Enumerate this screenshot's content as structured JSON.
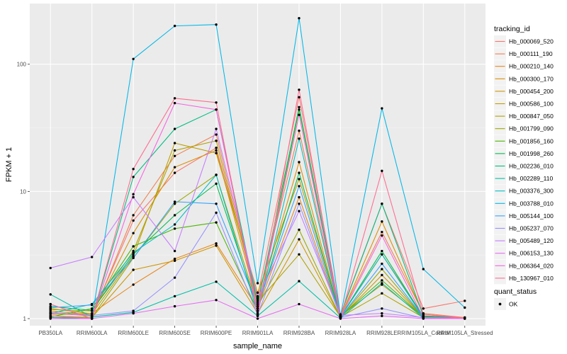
{
  "chart_data": {
    "type": "line",
    "xlabel": "sample_name",
    "ylabel": "FPKM + 1",
    "y_scale": "log10",
    "y_ticks": [
      1,
      10,
      100
    ],
    "ylim": [
      0.88,
      300
    ],
    "grid": true,
    "legend_position": "right",
    "categories": [
      "PB350LA",
      "RRIM600LA",
      "RRIM600LE",
      "RRIM600SE",
      "RRIM600PE",
      "RRIM901LA",
      "RRIM928BA",
      "RRIM928LA",
      "RRIM928LE",
      "RRIM105LA_Control",
      "RRIM105LA_Stressed"
    ],
    "category_labels": [
      "PB350LA",
      "RRIM600LA",
      "RRIM600LE",
      "RRIM600SE",
      "RRIM600PE",
      "RRIM901LA",
      "RRIM928BA",
      "RRIM928LA",
      "RRIM928LE",
      "RRIM105LA_Control",
      "RRIM105LA_Stressed"
    ],
    "legend_title": "tracking_id",
    "series": [
      {
        "name": "Hb_000069_520",
        "color": "#F8766D",
        "values": [
          1.1,
          1.05,
          5.9,
          14.0,
          22.0,
          1.5,
          55.0,
          1.08,
          8.0,
          1.2,
          1.38
        ]
      },
      {
        "name": "Hb_000111_190",
        "color": "#F17E4E",
        "values": [
          1.05,
          1.02,
          6.5,
          19.0,
          28.0,
          1.4,
          30.0,
          1.05,
          4.8,
          1.1,
          1.02
        ]
      },
      {
        "name": "Hb_000210_140",
        "color": "#E7861B",
        "values": [
          1.08,
          1.1,
          1.85,
          2.95,
          3.9,
          1.2,
          9.0,
          1.03,
          3.2,
          1.05,
          1.02
        ]
      },
      {
        "name": "Hb_000300_170",
        "color": "#DB8E00",
        "values": [
          1.15,
          1.07,
          4.7,
          15.5,
          21.0,
          1.3,
          17.0,
          1.04,
          5.8,
          1.08,
          1.01
        ]
      },
      {
        "name": "Hb_000454_200",
        "color": "#CD9600",
        "values": [
          1.02,
          1.02,
          2.42,
          2.85,
          3.75,
          1.1,
          4.2,
          1.02,
          2.2,
          1.03,
          1.01
        ]
      },
      {
        "name": "Hb_000586_100",
        "color": "#BE9C00",
        "values": [
          1.2,
          1.09,
          3.1,
          24.0,
          20.0,
          1.6,
          12.5,
          1.05,
          1.85,
          1.04,
          1.01
        ]
      },
      {
        "name": "Hb_000847_050",
        "color": "#AEA200",
        "values": [
          1.18,
          1.15,
          3.4,
          21.0,
          25.0,
          1.35,
          3.2,
          1.03,
          1.58,
          1.02,
          1.01
        ]
      },
      {
        "name": "Hb_001799_090",
        "color": "#9AA800",
        "values": [
          1.05,
          1.02,
          3.0,
          8.0,
          13.5,
          1.25,
          5.0,
          1.02,
          2.45,
          1.02,
          1.01
        ]
      },
      {
        "name": "Hb_001856_160",
        "color": "#4BB600",
        "values": [
          1.03,
          1.2,
          3.7,
          5.1,
          5.7,
          1.15,
          44.0,
          1.04,
          2.0,
          1.03,
          1.01
        ]
      },
      {
        "name": "Hb_001998_260",
        "color": "#00BB4E",
        "values": [
          1.25,
          1.16,
          3.2,
          6.5,
          11.5,
          1.2,
          14.0,
          1.03,
          3.4,
          1.03,
          1.01
        ]
      },
      {
        "name": "Hb_002236_010",
        "color": "#00BD81",
        "values": [
          1.02,
          1.0,
          13.0,
          31.0,
          44.0,
          1.3,
          46.0,
          1.06,
          8.0,
          1.05,
          1.01
        ]
      },
      {
        "name": "Hb_002289_110",
        "color": "#00BFA6",
        "values": [
          1.55,
          1.03,
          1.12,
          1.5,
          1.95,
          1.05,
          1.97,
          1.01,
          1.9,
          1.01,
          1.0
        ]
      },
      {
        "name": "Hb_003376_300",
        "color": "#00BFC4",
        "values": [
          1.1,
          1.3,
          3.3,
          5.5,
          13.5,
          1.1,
          26.0,
          1.03,
          3.2,
          1.02,
          1.01
        ]
      },
      {
        "name": "Hb_003788_010",
        "color": "#00B8E7",
        "values": [
          1.3,
          1.0,
          110,
          200,
          205,
          1.9,
          230,
          1.05,
          45.0,
          2.45,
          1.22
        ]
      },
      {
        "name": "Hb_005144_100",
        "color": "#35A2FF",
        "values": [
          1.22,
          1.28,
          3.0,
          8.3,
          8.0,
          1.25,
          11.0,
          1.02,
          2.7,
          1.02,
          1.01
        ]
      },
      {
        "name": "Hb_005237_070",
        "color": "#9590FF",
        "values": [
          1.12,
          1.06,
          1.15,
          2.1,
          6.8,
          1.07,
          8.0,
          1.02,
          1.2,
          1.01,
          1.0
        ]
      },
      {
        "name": "Hb_005489_120",
        "color": "#C77CFF",
        "values": [
          2.5,
          3.05,
          9.0,
          3.4,
          31.0,
          1.45,
          7.0,
          1.06,
          1.1,
          1.02,
          1.01
        ]
      },
      {
        "name": "Hb_006153_130",
        "color": "#E76BF3",
        "values": [
          1.0,
          1.0,
          1.1,
          1.25,
          1.4,
          1.0,
          1.3,
          1.0,
          1.05,
          1.0,
          1.0
        ]
      },
      {
        "name": "Hb_006364_020",
        "color": "#F763E0",
        "values": [
          1.05,
          1.0,
          9.5,
          49.5,
          44.0,
          1.15,
          40.0,
          1.02,
          4.5,
          1.02,
          1.01
        ]
      },
      {
        "name": "Hb_130967_010",
        "color": "#FF6C91",
        "values": [
          1.3,
          1.0,
          15.0,
          54.0,
          50.0,
          1.05,
          63.0,
          1.02,
          14.5,
          1.08,
          1.01
        ]
      }
    ],
    "shape_legend": {
      "title": "quant_status",
      "items": [
        "OK"
      ]
    }
  }
}
